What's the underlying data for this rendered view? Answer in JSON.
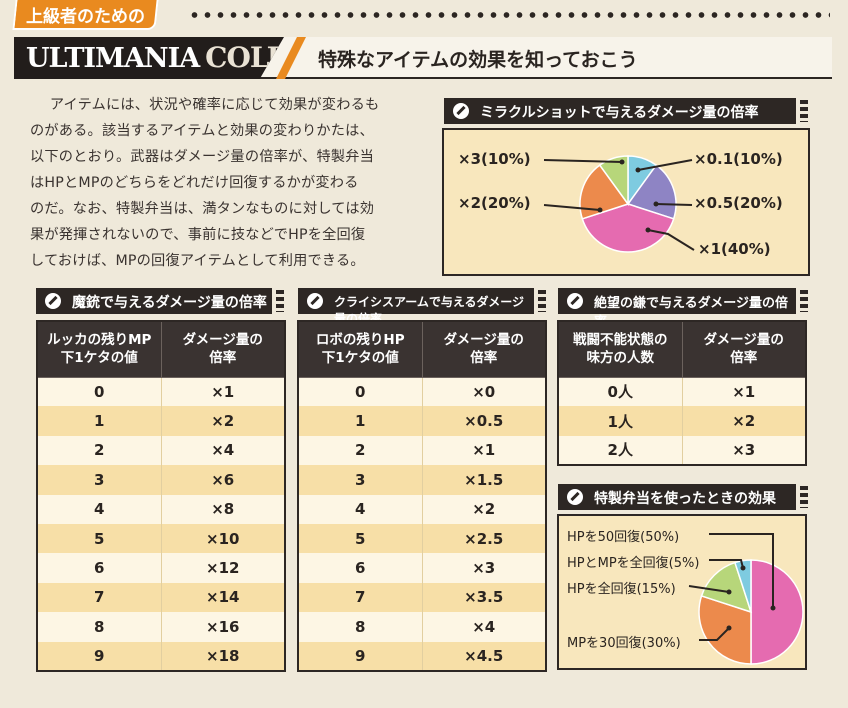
{
  "header": {
    "tag": "上級者のための",
    "title_part1": "ULTIMANIA",
    "title_part2": "COLUMN",
    "subtitle": "特殊なアイテムの効果を知っておこう"
  },
  "intro": {
    "lines": [
      "アイテムには、状況や確率に応じて効果が変わるも",
      "のがある。該当するアイテムと効果の変わりかたは、",
      "以下のとおり。武器はダメージ量の倍率が、特製弁当",
      "はHPとMPのどちらをどれだけ回復するかが変わる",
      "のだ。なお、特製弁当は、満タンなものに対しては効",
      "果が発揮されないので、事前に技などでHPを全回復",
      "しておけば、MPの回復アイテムとして利用できる。"
    ]
  },
  "miracle": {
    "heading": "ミラクルショットで与えるダメージ量の倍率",
    "labels": {
      "x3": "×3(10%)",
      "x2": "×2(20%)",
      "x01": "×0.1(10%)",
      "x05": "×0.5(20%)",
      "x1": "×1(40%)"
    }
  },
  "majuu": {
    "heading": "魔銃で与えるダメージ量の倍率",
    "col1": "ルッカの残りMP\n下1ケタの値",
    "col2": "ダメージ量の\n倍率",
    "rows": [
      [
        "0",
        "×1"
      ],
      [
        "1",
        "×2"
      ],
      [
        "2",
        "×4"
      ],
      [
        "3",
        "×6"
      ],
      [
        "4",
        "×8"
      ],
      [
        "5",
        "×10"
      ],
      [
        "6",
        "×12"
      ],
      [
        "7",
        "×14"
      ],
      [
        "8",
        "×16"
      ],
      [
        "9",
        "×18"
      ]
    ]
  },
  "crisis": {
    "heading": "クライシスアームで与えるダメージ量の倍率",
    "col1": "ロボの残りHP\n下1ケタの値",
    "col2": "ダメージ量の\n倍率",
    "rows": [
      [
        "0",
        "×0"
      ],
      [
        "1",
        "×0.5"
      ],
      [
        "2",
        "×1"
      ],
      [
        "3",
        "×1.5"
      ],
      [
        "4",
        "×2"
      ],
      [
        "5",
        "×2.5"
      ],
      [
        "6",
        "×3"
      ],
      [
        "7",
        "×3.5"
      ],
      [
        "8",
        "×4"
      ],
      [
        "9",
        "×4.5"
      ]
    ]
  },
  "despair": {
    "heading": "絶望の鎌で与えるダメージ量の倍率",
    "col1": "戦闘不能状態の\n味方の人数",
    "col2": "ダメージ量の\n倍率",
    "rows": [
      [
        "0人",
        "×1"
      ],
      [
        "1人",
        "×2"
      ],
      [
        "2人",
        "×3"
      ]
    ]
  },
  "bento": {
    "heading": "特製弁当を使ったときの効果",
    "labels": {
      "hp50": "HPを50回復(50%)",
      "hpmp": "HPとMPを全回復(5%)",
      "hpfull": "HPを全回復(15%)",
      "mp30": "MPを30回復(30%)"
    }
  },
  "chart_data": [
    {
      "type": "pie",
      "title": "ミラクルショットで与えるダメージ量の倍率",
      "series": [
        {
          "label": "×0.1",
          "value": 10,
          "color": "#7ecbe0"
        },
        {
          "label": "×0.5",
          "value": 20,
          "color": "#8e84c4"
        },
        {
          "label": "×1",
          "value": 40,
          "color": "#e56bb0"
        },
        {
          "label": "×2",
          "value": 20,
          "color": "#ec8a4c"
        },
        {
          "label": "×3",
          "value": 10,
          "color": "#b7d67a"
        }
      ]
    },
    {
      "type": "pie",
      "title": "特製弁当を使ったときの効果",
      "series": [
        {
          "label": "HPを50回復",
          "value": 50,
          "color": "#e56bb0"
        },
        {
          "label": "MPを30回復",
          "value": 30,
          "color": "#ec8a4c"
        },
        {
          "label": "HPを全回復",
          "value": 15,
          "color": "#b7d67a"
        },
        {
          "label": "HPとMPを全回復",
          "value": 5,
          "color": "#7ecbe0"
        }
      ]
    }
  ]
}
